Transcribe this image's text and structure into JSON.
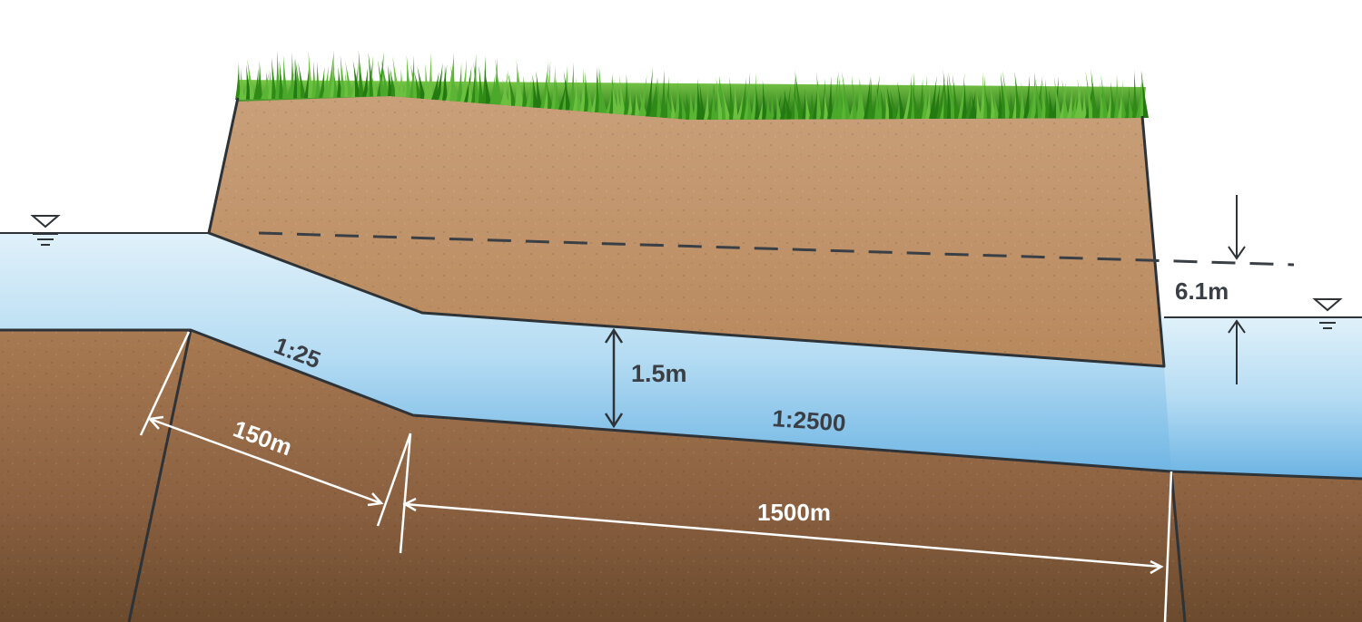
{
  "labels": {
    "upper_slope": "1:25",
    "clearance": "1.5m",
    "lower_slope": "1:2500",
    "height_difference": "6.1m",
    "short_length": "150m",
    "long_length": "1500m"
  },
  "colors": {
    "water_light": "#d3ebf8",
    "water_dark": "#6db4e4",
    "soil_top": "#c59a6f",
    "soil_bottom": "#6b4a2d",
    "grass": "#3d9a1f",
    "line": "#2e3338",
    "dimension": "#ffffff"
  },
  "icons": {
    "left_water_level": "water-level-icon",
    "right_water_level": "water-level-icon"
  }
}
